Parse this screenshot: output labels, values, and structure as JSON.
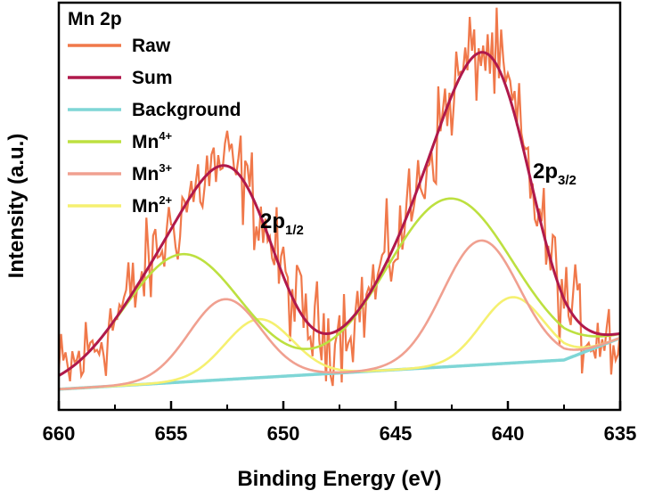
{
  "chart_data": {
    "type": "line",
    "title": "Mn 2p",
    "xlabel": "Binding Energy (eV)",
    "ylabel": "Intensity (a.u.)",
    "xlim": [
      660,
      635
    ],
    "x_reversed": true,
    "y_ticks_shown": false,
    "x_ticks": [
      660,
      655,
      650,
      645,
      640,
      635
    ],
    "legend_placement": "top-left",
    "annotations": [
      {
        "text": "2p",
        "sub": "1/2",
        "x": 651,
        "y": 0.74
      },
      {
        "text": "2p",
        "sub": "3/2",
        "x": 638.5,
        "y": 0.92
      }
    ],
    "background": {
      "x": [
        660,
        637.5,
        635
      ],
      "y": [
        0.02,
        0.1,
        0.16
      ]
    },
    "peaks": [
      {
        "series": "Mn4+",
        "center": 654.5,
        "amp": 0.35,
        "width": 2.6
      },
      {
        "series": "Mn3+",
        "center": 652.6,
        "amp": 0.22,
        "width": 1.6
      },
      {
        "series": "Mn2+",
        "center": 651.1,
        "amp": 0.16,
        "width": 1.5
      },
      {
        "series": "Mn4+",
        "center": 642.6,
        "amp": 0.46,
        "width": 2.8
      },
      {
        "series": "Mn3+",
        "center": 641.2,
        "amp": 0.34,
        "width": 1.7
      },
      {
        "series": "Mn2+",
        "center": 639.8,
        "amp": 0.18,
        "width": 1.4
      }
    ],
    "series": [
      {
        "key": "raw",
        "name": "Raw",
        "color": "#f0784a"
      },
      {
        "key": "sum",
        "name": "Sum",
        "color": "#b0194b"
      },
      {
        "key": "bg",
        "name": "Background",
        "color": "#7fd6d6"
      },
      {
        "key": "mn4",
        "name": "Mn",
        "sup": "4+",
        "color": "#bde040"
      },
      {
        "key": "mn3",
        "name": "Mn",
        "sup": "3+",
        "color": "#f0a090"
      },
      {
        "key": "mn2",
        "name": "Mn",
        "sup": "2+",
        "color": "#f5f070"
      }
    ]
  }
}
